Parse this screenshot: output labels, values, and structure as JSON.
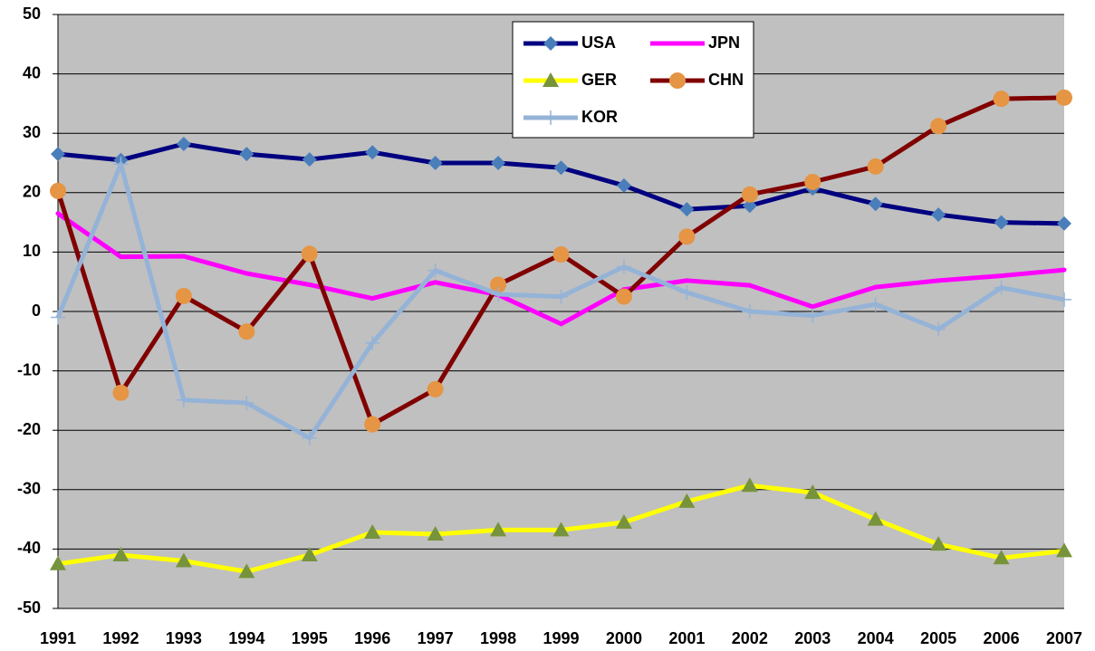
{
  "chart_data": {
    "type": "line",
    "categories": [
      "1991",
      "1992",
      "1993",
      "1994",
      "1995",
      "1996",
      "1997",
      "1998",
      "1999",
      "2000",
      "2001",
      "2002",
      "2003",
      "2004",
      "2005",
      "2006",
      "2007"
    ],
    "series": [
      {
        "name": "USA",
        "color": "#000080",
        "marker": "diamond",
        "marker_color": "#4a7ebb",
        "values": [
          26.5,
          25.5,
          28.2,
          26.5,
          25.6,
          26.8,
          25,
          25,
          24.2,
          21.2,
          17.2,
          17.8,
          20.7,
          18.1,
          16.3,
          15,
          14.8
        ]
      },
      {
        "name": "JPN",
        "color": "#ff00ff",
        "marker": "none",
        "marker_color": "#ff00ff",
        "values": [
          16.5,
          9.2,
          9.3,
          6.4,
          4.5,
          2.2,
          4.9,
          2.8,
          -2.1,
          3.7,
          5.2,
          4.4,
          0.8,
          4.1,
          5.2,
          6.0,
          7.0
        ]
      },
      {
        "name": "GER",
        "color": "#ffff00",
        "marker": "triangle",
        "marker_color": "#77933c",
        "values": [
          -42.5,
          -41,
          -42,
          -43.8,
          -41,
          -37.2,
          -37.5,
          -36.8,
          -36.8,
          -35.5,
          -32,
          -29.3,
          -30.5,
          -35,
          -39.2,
          -41.5,
          -40.3
        ]
      },
      {
        "name": "CHN",
        "color": "#800000",
        "marker": "circle",
        "marker_color": "#e59544",
        "values": [
          20.3,
          -13.7,
          2.6,
          -3.4,
          9.7,
          -19,
          -13.1,
          4.5,
          9.6,
          2.5,
          12.6,
          19.7,
          21.8,
          24.4,
          31.2,
          35.8,
          36
        ]
      },
      {
        "name": "KOR",
        "color": "#95b3d7",
        "marker": "plus",
        "marker_color": "#95b3d7",
        "values": [
          -1,
          24.8,
          -14.9,
          -15.4,
          -21.3,
          -5.3,
          6.9,
          2.9,
          2.5,
          7.5,
          3.2,
          0.0,
          -0.7,
          1.2,
          -3,
          4.0,
          2.0
        ]
      }
    ],
    "ylim": [
      -50,
      50
    ],
    "yticks": [
      -50,
      -40,
      -30,
      -20,
      -10,
      0,
      10,
      20,
      30,
      40,
      50
    ],
    "grid": true,
    "legend": "top-center"
  }
}
